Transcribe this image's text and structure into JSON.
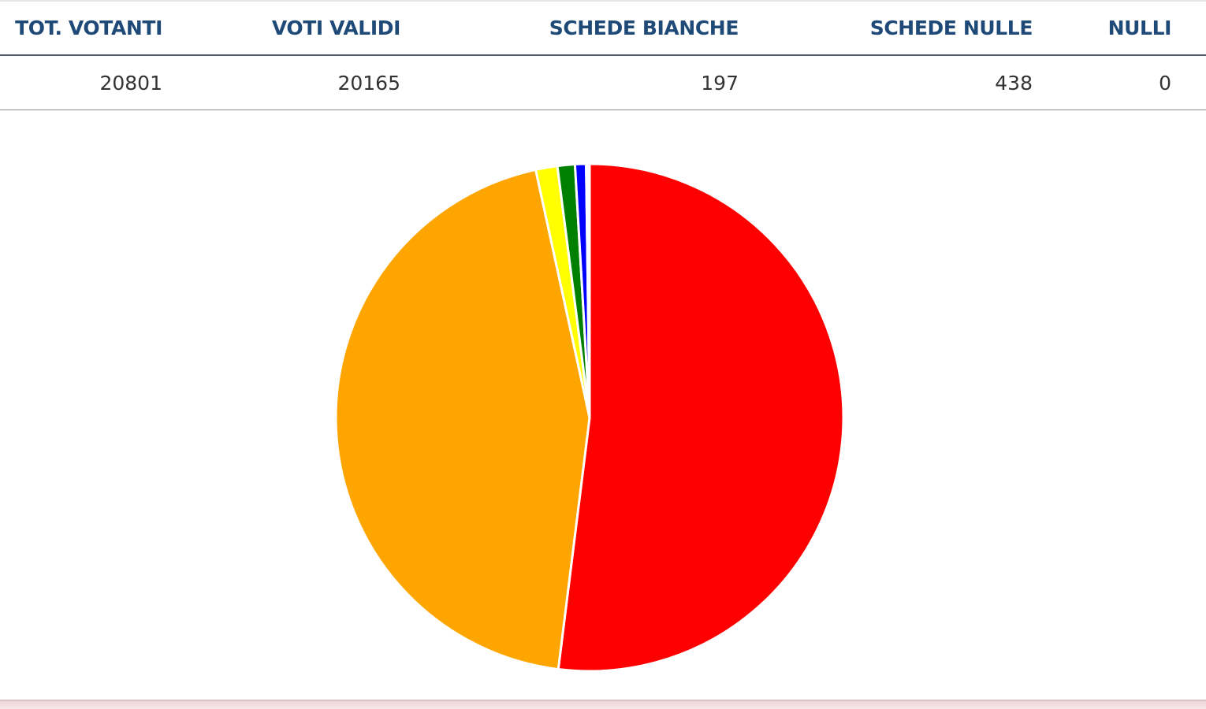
{
  "totals_table": {
    "headers": [
      "TOT. VOTANTI",
      "VOTI VALIDI",
      "SCHEDE BIANCHE",
      "SCHEDE NULLE",
      "NULLI"
    ],
    "values": [
      "20801",
      "20165",
      "197",
      "438",
      "0"
    ]
  },
  "chart_data": {
    "type": "pie",
    "start": "12 o'clock",
    "direction": "clockwise",
    "slices": [
      {
        "value": 51.97,
        "color": "#ff0000"
      },
      {
        "value": 44.62,
        "color": "#ffa500"
      },
      {
        "value": 1.38,
        "color": "#ffff00"
      },
      {
        "value": 1.11,
        "color": "#008000"
      },
      {
        "value": 0.7,
        "color": "#0000ff"
      },
      {
        "value": 0.16,
        "color": "#ffe4e1"
      },
      {
        "value": 0.06,
        "color": "#800080"
      }
    ],
    "slice_border_color": "#ffffff"
  }
}
